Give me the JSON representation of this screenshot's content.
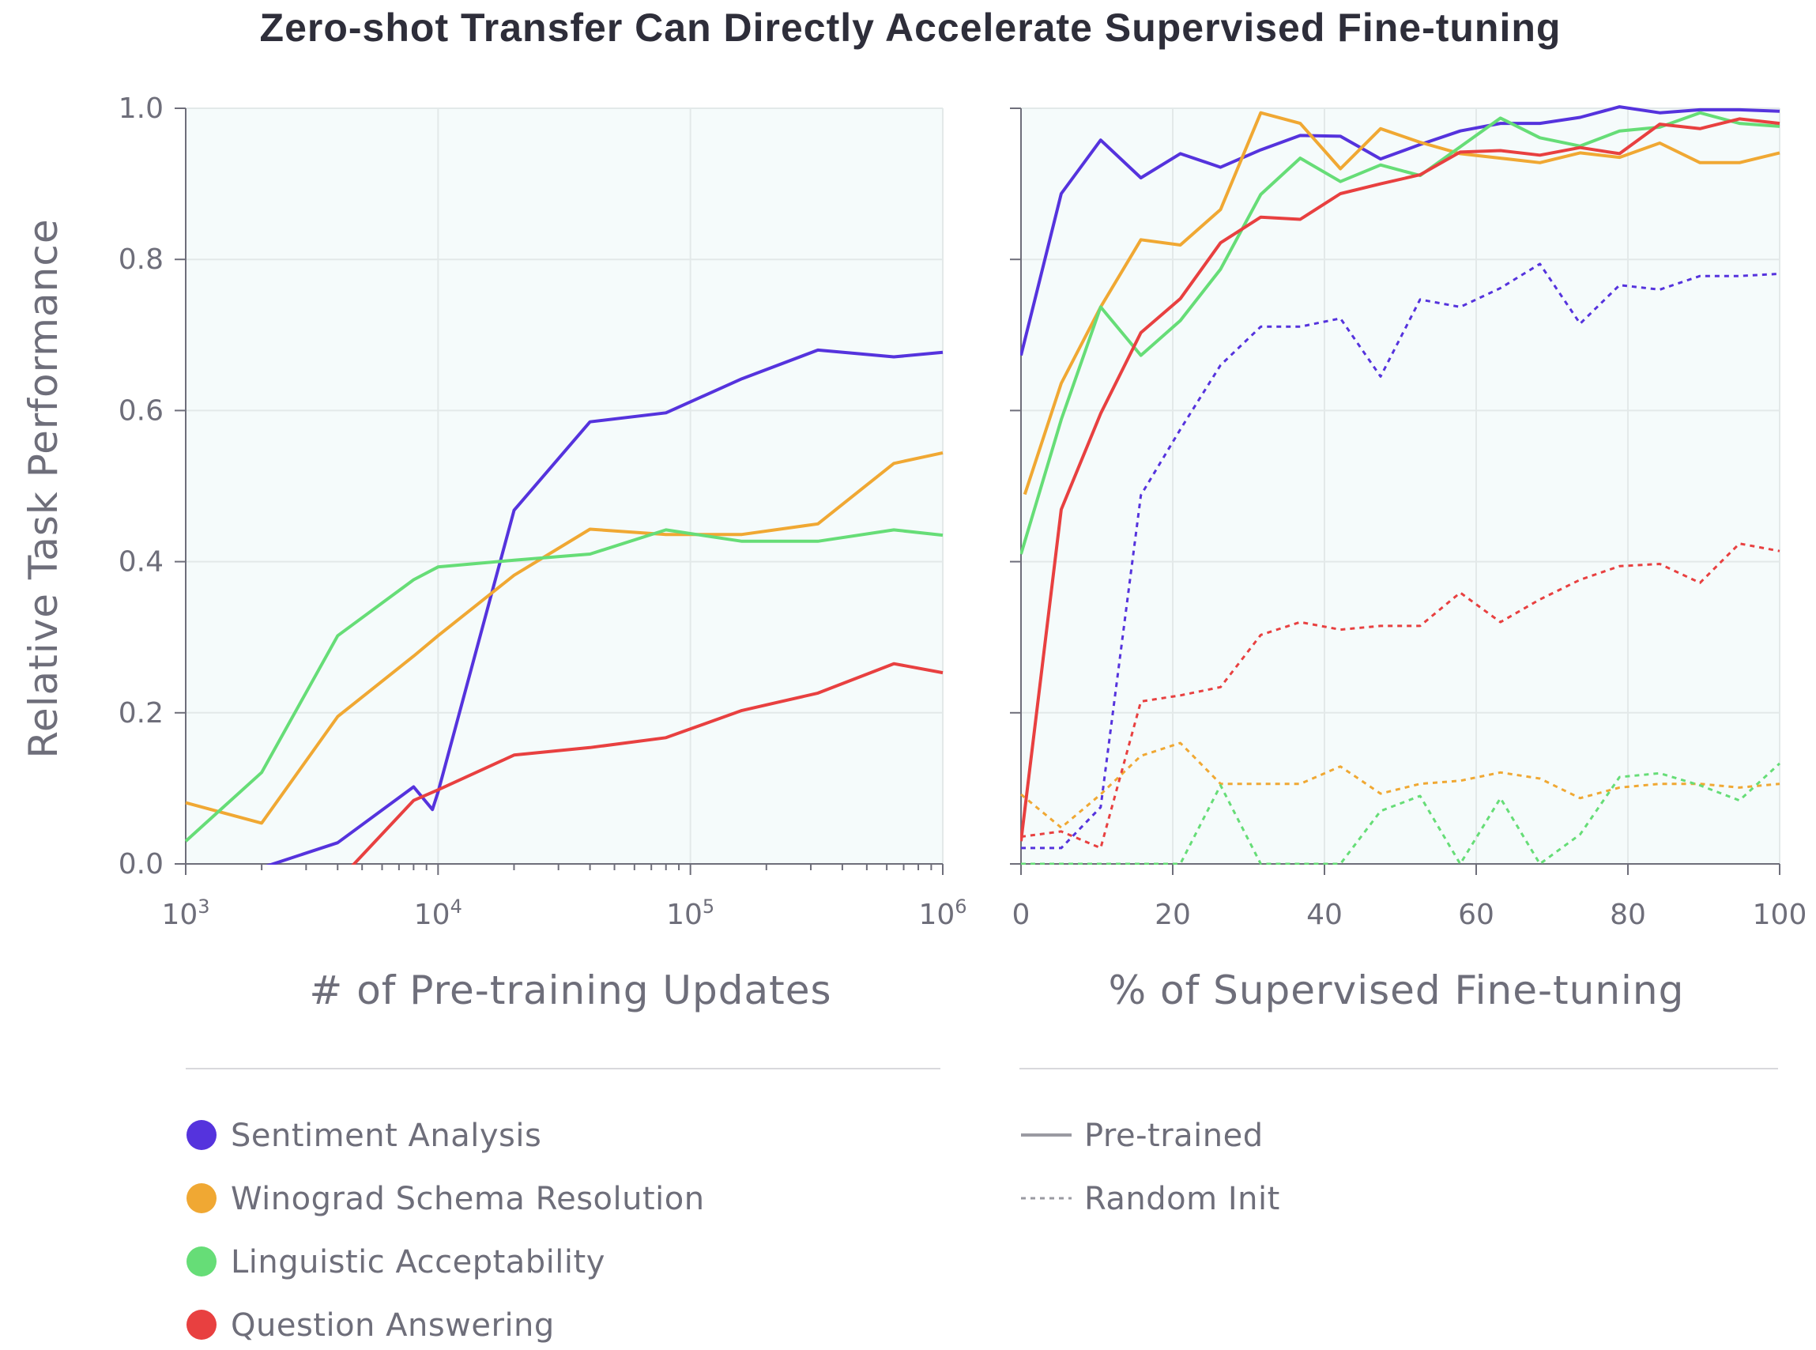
{
  "title": "Zero-shot Transfer Can Directly Accelerate Supervised Fine-tuning",
  "colors": {
    "sentiment": "#5533dd",
    "winograd": "#f0a833",
    "linguistic": "#66dd77",
    "qa": "#e84040",
    "text": "#6e6e7a",
    "background": "#f5fbfb"
  },
  "chart_data": [
    {
      "type": "line",
      "xlabel": "# of Pre-training Updates",
      "ylabel": "Relative Task Performance",
      "xscale": "log",
      "xlim": [
        1000,
        1000000
      ],
      "ylim": [
        0,
        1
      ],
      "grid": true,
      "xticks": [
        1000,
        10000,
        100000,
        1000000
      ],
      "xtick_labels": [
        {
          "base": "10",
          "exp": "3"
        },
        {
          "base": "10",
          "exp": "4"
        },
        {
          "base": "10",
          "exp": "5"
        },
        {
          "base": "10",
          "exp": "6"
        }
      ],
      "yticks": [
        "0.0",
        "0.2",
        "0.4",
        "0.6",
        "0.8",
        "1.0"
      ],
      "series": [
        {
          "name": "Sentiment Analysis",
          "color": "#5533dd",
          "style": "solid",
          "x": [
            2000,
            4000,
            8000,
            9500,
            10000,
            20000,
            40000,
            80000,
            160000,
            320000,
            640000,
            1000000
          ],
          "y": [
            -0.005,
            0.028,
            0.102,
            0.072,
            0.095,
            0.468,
            0.585,
            0.597,
            0.642,
            0.68,
            0.671,
            0.677
          ]
        },
        {
          "name": "Winograd Schema Resolution",
          "color": "#f0a833",
          "style": "solid",
          "x": [
            1000,
            2000,
            4000,
            8000,
            10000,
            20000,
            40000,
            80000,
            160000,
            320000,
            640000,
            1000000
          ],
          "y": [
            0.081,
            0.054,
            0.195,
            0.275,
            0.302,
            0.382,
            0.443,
            0.436,
            0.436,
            0.45,
            0.53,
            0.544
          ]
        },
        {
          "name": "Linguistic Acceptability",
          "color": "#66dd77",
          "style": "solid",
          "x": [
            1000,
            2000,
            4000,
            8000,
            10000,
            20000,
            40000,
            80000,
            160000,
            320000,
            640000,
            1000000
          ],
          "y": [
            0.03,
            0.121,
            0.302,
            0.376,
            0.393,
            0.402,
            0.41,
            0.442,
            0.427,
            0.427,
            0.442,
            0.435
          ]
        },
        {
          "name": "Question Answering",
          "color": "#e84040",
          "style": "solid",
          "x": [
            4500,
            8000,
            10000,
            20000,
            40000,
            80000,
            160000,
            320000,
            640000,
            1000000
          ],
          "y": [
            -0.005,
            0.084,
            0.098,
            0.144,
            0.154,
            0.167,
            0.203,
            0.226,
            0.265,
            0.253
          ]
        }
      ]
    },
    {
      "type": "line",
      "xlabel": "% of Supervised Fine-tuning",
      "xlim": [
        0,
        100
      ],
      "ylim": [
        0,
        1
      ],
      "grid": true,
      "xticks": [
        0,
        20,
        40,
        60,
        80,
        100
      ],
      "xtick_labels": [
        "0",
        "20",
        "40",
        "60",
        "80",
        "100"
      ],
      "series": [
        {
          "name": "Sentiment Analysis",
          "color": "#5533dd",
          "style": "solid",
          "x": [
            0,
            5.3,
            10.5,
            15.8,
            21,
            26.3,
            31.6,
            36.8,
            42.1,
            47.4,
            52.6,
            57.9,
            63.2,
            68.4,
            73.7,
            78.9,
            84.2,
            89.5,
            94.7,
            100
          ],
          "y": [
            0.673,
            0.887,
            0.958,
            0.908,
            0.94,
            0.922,
            0.945,
            0.964,
            0.963,
            0.933,
            0.952,
            0.97,
            0.98,
            0.98,
            0.988,
            1.002,
            0.994,
            0.998,
            0.998,
            0.996
          ]
        },
        {
          "name": "Winograd Schema Resolution",
          "color": "#f0a833",
          "style": "solid",
          "x": [
            0.5,
            5.3,
            10.5,
            15.8,
            21,
            26.3,
            31.6,
            36.8,
            42.1,
            47.4,
            52.6,
            57.9,
            63.2,
            68.4,
            73.7,
            78.9,
            84.2,
            89.5,
            94.7,
            100
          ],
          "y": [
            0.489,
            0.636,
            0.737,
            0.826,
            0.819,
            0.866,
            0.994,
            0.98,
            0.92,
            0.973,
            0.955,
            0.94,
            0.934,
            0.928,
            0.941,
            0.935,
            0.954,
            0.928,
            0.928,
            0.941
          ]
        },
        {
          "name": "Linguistic Acceptability",
          "color": "#66dd77",
          "style": "solid",
          "x": [
            0,
            5.3,
            10.5,
            15.8,
            21,
            26.3,
            31.6,
            36.8,
            42.1,
            47.4,
            52.6,
            57.9,
            63.2,
            68.4,
            73.7,
            78.9,
            84.2,
            89.5,
            94.7,
            100
          ],
          "y": [
            0.41,
            0.588,
            0.737,
            0.673,
            0.719,
            0.787,
            0.886,
            0.934,
            0.903,
            0.925,
            0.911,
            0.949,
            0.987,
            0.961,
            0.95,
            0.97,
            0.975,
            0.994,
            0.98,
            0.976
          ]
        },
        {
          "name": "Question Answering",
          "color": "#e84040",
          "style": "solid",
          "x": [
            0,
            5.3,
            10.5,
            15.8,
            21,
            26.3,
            31.6,
            36.8,
            42.1,
            47.4,
            52.6,
            57.9,
            63.2,
            68.4,
            73.7,
            78.9,
            84.2,
            89.5,
            94.7,
            100
          ],
          "y": [
            0.03,
            0.469,
            0.596,
            0.703,
            0.748,
            0.822,
            0.856,
            0.853,
            0.887,
            0.9,
            0.912,
            0.942,
            0.944,
            0.938,
            0.948,
            0.94,
            0.979,
            0.973,
            0.986,
            0.98
          ]
        },
        {
          "name": "Sentiment Analysis",
          "color": "#5533dd",
          "style": "dotted",
          "x": [
            0,
            5.3,
            10.5,
            15.8,
            21,
            26.3,
            31.6,
            36.8,
            42.1,
            47.4,
            52.6,
            57.9,
            63.2,
            68.4,
            73.7,
            78.9,
            84.2,
            89.5,
            94.7,
            100
          ],
          "y": [
            0.021,
            0.021,
            0.075,
            0.488,
            0.575,
            0.66,
            0.711,
            0.711,
            0.722,
            0.645,
            0.747,
            0.737,
            0.762,
            0.794,
            0.715,
            0.766,
            0.76,
            0.778,
            0.778,
            0.781
          ]
        },
        {
          "name": "Winograd Schema Resolution",
          "color": "#f0a833",
          "style": "dotted",
          "x": [
            0,
            5.3,
            10.5,
            15.8,
            21,
            26.3,
            31.6,
            36.8,
            42.1,
            47.4,
            52.6,
            57.9,
            63.2,
            68.4,
            73.7,
            78.9,
            84.2,
            89.5,
            94.7,
            100
          ],
          "y": [
            0.092,
            0.048,
            0.092,
            0.143,
            0.16,
            0.106,
            0.106,
            0.106,
            0.129,
            0.093,
            0.106,
            0.11,
            0.121,
            0.113,
            0.087,
            0.101,
            0.106,
            0.106,
            0.101,
            0.106
          ]
        },
        {
          "name": "Linguistic Acceptability",
          "color": "#66dd77",
          "style": "dotted",
          "x": [
            0,
            5.3,
            10.5,
            15.8,
            21,
            26.3,
            31.6,
            36.8,
            42.1,
            47.4,
            52.6,
            57.9,
            63.2,
            68.4,
            73.7,
            78.9,
            84.2,
            89.5,
            94.7,
            100
          ],
          "y": [
            0.0,
            0.0,
            0.0,
            0.0,
            0.0,
            0.104,
            0.0,
            0.0,
            0.0,
            0.07,
            0.09,
            0.0,
            0.087,
            0.0,
            0.039,
            0.115,
            0.12,
            0.104,
            0.084,
            0.133
          ]
        },
        {
          "name": "Question Answering",
          "color": "#e84040",
          "style": "dotted",
          "x": [
            0,
            5.3,
            10.5,
            15.8,
            21,
            26.3,
            31.6,
            36.8,
            42.1,
            47.4,
            52.6,
            57.9,
            63.2,
            68.4,
            73.7,
            78.9,
            84.2,
            89.5,
            94.7,
            100
          ],
          "y": [
            0.036,
            0.043,
            0.021,
            0.215,
            0.223,
            0.234,
            0.303,
            0.32,
            0.31,
            0.315,
            0.315,
            0.359,
            0.32,
            0.35,
            0.376,
            0.394,
            0.397,
            0.372,
            0.424,
            0.414
          ]
        }
      ]
    }
  ],
  "legend_tasks": [
    {
      "label": "Sentiment Analysis",
      "color": "#5533dd"
    },
    {
      "label": "Winograd Schema Resolution",
      "color": "#f0a833"
    },
    {
      "label": "Linguistic Acceptability",
      "color": "#66dd77"
    },
    {
      "label": "Question Answering",
      "color": "#e84040"
    }
  ],
  "legend_styles": [
    {
      "label": "Pre-trained",
      "style": "solid"
    },
    {
      "label": "Random Init",
      "style": "dotted"
    }
  ]
}
